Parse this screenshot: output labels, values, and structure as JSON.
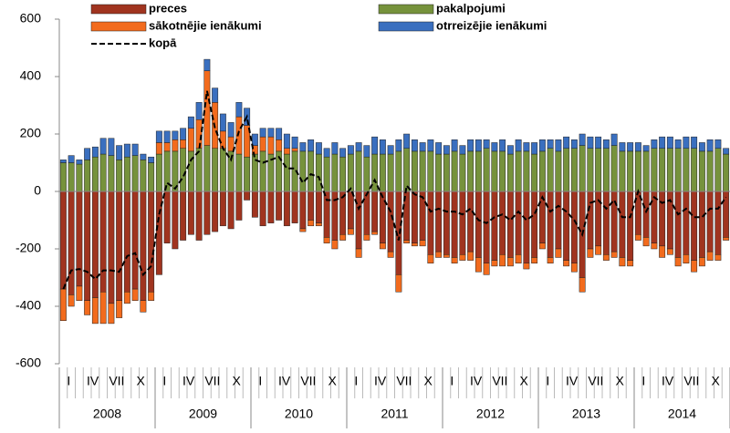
{
  "chart_data": {
    "type": "bar",
    "stacked": true,
    "categories": [
      "I",
      null,
      null,
      "IV",
      null,
      null,
      "VII",
      null,
      null,
      "X",
      null,
      null,
      "I",
      null,
      null,
      "IV",
      null,
      null,
      "VII",
      null,
      null,
      "X",
      null,
      null,
      "I",
      null,
      null,
      "IV",
      null,
      null,
      "VII",
      null,
      null,
      "X",
      null,
      null,
      "I",
      null,
      null,
      "IV",
      null,
      null,
      "VII",
      null,
      null,
      "X",
      null,
      null,
      "I",
      null,
      null,
      "IV",
      null,
      null,
      "VII",
      null,
      null,
      "X",
      null,
      null,
      "I",
      null,
      null,
      "IV",
      null,
      null,
      "VII",
      null,
      null,
      "X",
      null,
      null,
      "I",
      null,
      null,
      "IV",
      null,
      null,
      "VII",
      null,
      null,
      "X",
      null,
      null
    ],
    "years": [
      "2008",
      "2009",
      "2010",
      "2011",
      "2012",
      "2013",
      "2014"
    ],
    "ylim": [
      -600,
      600
    ],
    "yticks": [
      -600,
      -400,
      -200,
      0,
      200,
      400,
      600
    ],
    "grid": false,
    "legend": "top",
    "series": [
      {
        "name": "preces",
        "color": "#a0341f",
        "values": [
          -340,
          -360,
          -330,
          -380,
          -370,
          -350,
          -390,
          -380,
          -350,
          -340,
          -380,
          -350,
          -290,
          -180,
          -200,
          -170,
          -150,
          -170,
          -150,
          -140,
          -120,
          -130,
          -100,
          -30,
          -90,
          -120,
          -110,
          -100,
          -120,
          -110,
          -130,
          -100,
          -110,
          -160,
          -170,
          -150,
          -130,
          -200,
          -150,
          -140,
          -180,
          -210,
          -290,
          -170,
          -180,
          -170,
          -220,
          -210,
          -220,
          -230,
          -220,
          -210,
          -230,
          -250,
          -240,
          -220,
          -230,
          -220,
          -250,
          -230,
          -180,
          -230,
          -200,
          -240,
          -250,
          -300,
          -200,
          -190,
          -220,
          -210,
          -230,
          -240,
          -150,
          -160,
          -180,
          -190,
          -200,
          -230,
          -220,
          -240,
          -230,
          -210,
          -220,
          -160
        ]
      },
      {
        "name": "pakalpojumi",
        "color": "#76923c",
        "values": [
          100,
          100,
          95,
          110,
          120,
          130,
          125,
          110,
          120,
          125,
          110,
          100,
          130,
          140,
          140,
          150,
          140,
          150,
          160,
          150,
          150,
          140,
          130,
          120,
          130,
          140,
          130,
          140,
          130,
          140,
          140,
          140,
          130,
          120,
          130,
          120,
          130,
          140,
          120,
          130,
          130,
          130,
          140,
          150,
          140,
          140,
          140,
          130,
          130,
          140,
          130,
          140,
          140,
          150,
          140,
          140,
          130,
          140,
          140,
          130,
          140,
          150,
          140,
          150,
          150,
          160,
          150,
          150,
          150,
          160,
          140,
          140,
          140,
          140,
          150,
          150,
          150,
          150,
          150,
          150,
          140,
          140,
          150,
          130
        ]
      },
      {
        "name": "sākotnējie ienākumi",
        "color": "#f26b1d",
        "values": [
          -110,
          -40,
          -50,
          -50,
          -90,
          -110,
          -70,
          -60,
          -40,
          -40,
          -40,
          -30,
          40,
          30,
          40,
          30,
          80,
          100,
          260,
          160,
          60,
          50,
          130,
          110,
          30,
          50,
          60,
          40,
          20,
          10,
          -10,
          -20,
          -10,
          -20,
          -30,
          -20,
          -20,
          -30,
          -20,
          -10,
          -20,
          -20,
          -60,
          -10,
          -10,
          -20,
          -30,
          -20,
          -10,
          -20,
          -20,
          -30,
          -50,
          -40,
          -20,
          -40,
          -30,
          -30,
          -20,
          -20,
          -20,
          -20,
          -30,
          -20,
          -30,
          -50,
          -30,
          -30,
          -20,
          -20,
          -30,
          -20,
          -20,
          -30,
          -20,
          -40,
          -20,
          -30,
          -30,
          -40,
          -30,
          -30,
          -20,
          -10
        ]
      },
      {
        "name": "otrreizējie ienākumi",
        "color": "#3a6fbf",
        "values": [
          10,
          25,
          15,
          40,
          35,
          55,
          60,
          50,
          45,
          40,
          20,
          20,
          40,
          40,
          30,
          40,
          40,
          60,
          40,
          50,
          60,
          50,
          50,
          60,
          40,
          30,
          30,
          40,
          50,
          40,
          30,
          40,
          40,
          30,
          40,
          30,
          30,
          30,
          40,
          60,
          50,
          30,
          40,
          50,
          40,
          30,
          40,
          40,
          30,
          40,
          30,
          40,
          40,
          30,
          30,
          40,
          30,
          40,
          30,
          40,
          40,
          30,
          40,
          40,
          30,
          40,
          40,
          40,
          30,
          40,
          30,
          30,
          30,
          20,
          30,
          40,
          40,
          30,
          40,
          40,
          30,
          40,
          30,
          20
        ]
      },
      {
        "name": "kopā",
        "type": "line",
        "color": "#000000",
        "dashed": true,
        "values": [
          -340,
          -275,
          -270,
          -280,
          -305,
          -275,
          -275,
          -280,
          -225,
          -215,
          -290,
          -260,
          -80,
          30,
          10,
          50,
          110,
          140,
          350,
          220,
          150,
          110,
          210,
          260,
          110,
          100,
          110,
          120,
          80,
          80,
          30,
          60,
          50,
          -30,
          -30,
          -20,
          10,
          -60,
          -10,
          40,
          -20,
          -70,
          -170,
          20,
          -10,
          -20,
          -70,
          -60,
          -70,
          -70,
          -80,
          -60,
          -100,
          -110,
          -90,
          -80,
          -100,
          -70,
          -100,
          -80,
          -20,
          -70,
          -50,
          -70,
          -100,
          -150,
          -40,
          -30,
          -60,
          -30,
          -90,
          -90,
          0,
          -70,
          -20,
          -40,
          -30,
          -80,
          -60,
          -90,
          -90,
          -60,
          -60,
          -20
        ]
      }
    ]
  }
}
